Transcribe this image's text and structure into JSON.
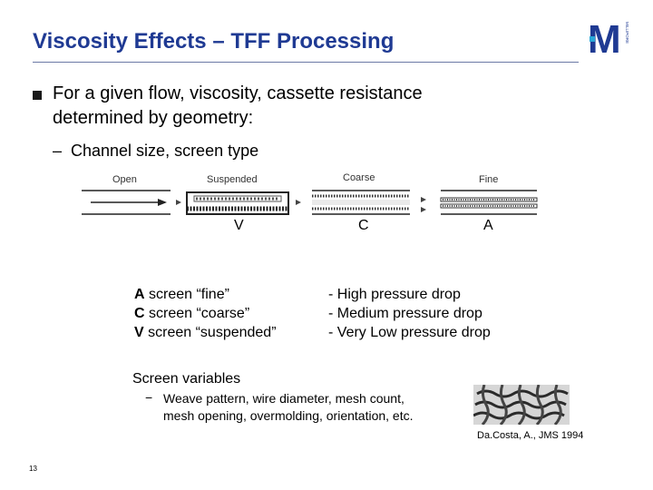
{
  "slide": {
    "title": "Viscosity Effects – TFF Processing",
    "logo_letter": "M",
    "logo_text": "MILLIPORE",
    "bullet": {
      "line1": "For a given flow, viscosity, cassette resistance",
      "line2": "determined by geometry:"
    },
    "sub_bullet": {
      "dash": "–",
      "text": "Channel size, screen type"
    },
    "diagram": {
      "labels": [
        "Open",
        "Suspended",
        "Coarse",
        "Fine"
      ],
      "letters": [
        "V",
        "C",
        "A"
      ]
    },
    "screens": [
      {
        "letter": "A",
        "text": " screen “fine”"
      },
      {
        "letter": "C",
        "text": " screen “coarse”"
      },
      {
        "letter": "V",
        "text": " screen “suspended”"
      }
    ],
    "pressure_drops": [
      "- High pressure drop",
      "- Medium pressure drop",
      "- Very Low pressure drop"
    ],
    "screen_variables": {
      "title": "Screen variables",
      "dash": "−",
      "line1": "Weave pattern, wire diameter, mesh count,",
      "line2": "mesh opening, overmolding, orientation, etc."
    },
    "citation": "Da.Costa, A., JMS 1994",
    "page_number": "13"
  }
}
